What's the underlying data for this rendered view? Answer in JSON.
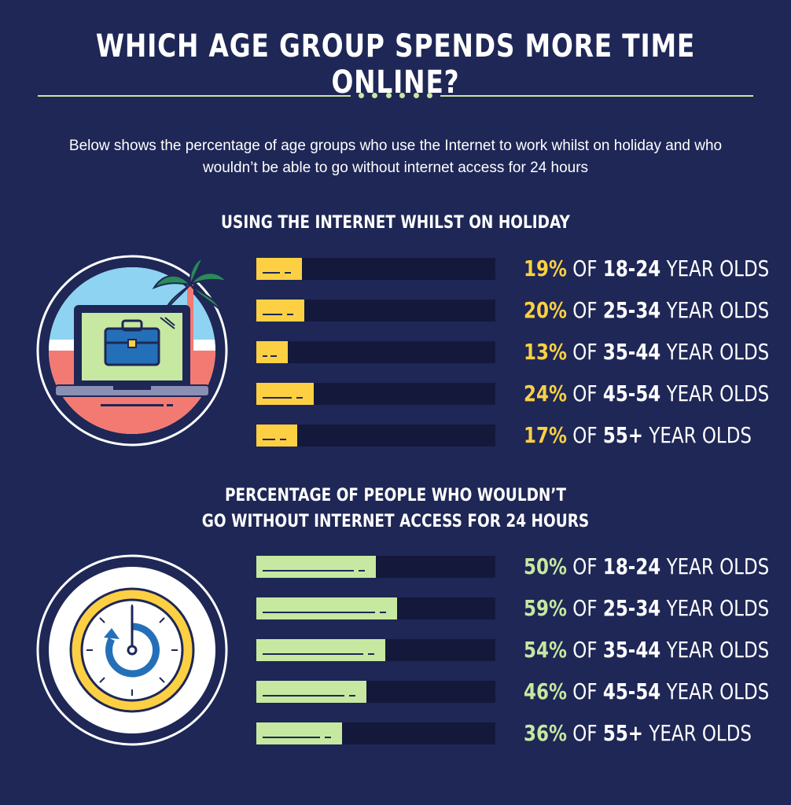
{
  "title": "WHICH AGE GROUP SPENDS MORE TIME ONLINE?",
  "intro": "Below shows the percentage of age groups who use the Internet to work whilst on holiday and who wouldn’t be able to go without internet access for 24 hours",
  "colors": {
    "background": "#1e2756",
    "track": "#14183b",
    "holiday_bar": "#fdd043",
    "offline_bar": "#c7e8a0",
    "divider": "#c7e8a0"
  },
  "chart_data": [
    {
      "type": "bar",
      "orientation": "horizontal",
      "title": "USING THE INTERNET WHILST ON HOLIDAY",
      "categories": [
        "18-24",
        "25-34",
        "35-44",
        "45-54",
        "55+"
      ],
      "values": [
        19,
        20,
        13,
        24,
        17
      ],
      "unit": "%",
      "xlim": [
        0,
        100
      ],
      "bar_color": "#fdd043",
      "icon": "laptop-palm-tree-icon",
      "labels": [
        {
          "pct": "19%",
          "of": "OF",
          "age": "18-24",
          "suffix": "YEAR OLDS"
        },
        {
          "pct": "20%",
          "of": "OF",
          "age": "25-34",
          "suffix": "YEAR OLDS"
        },
        {
          "pct": "13%",
          "of": "OF",
          "age": "35-44",
          "suffix": "YEAR OLDS"
        },
        {
          "pct": "24%",
          "of": "OF",
          "age": "45-54",
          "suffix": "YEAR OLDS"
        },
        {
          "pct": "17%",
          "of": "OF",
          "age": "55+",
          "suffix": "YEAR OLDS"
        }
      ]
    },
    {
      "type": "bar",
      "orientation": "horizontal",
      "title_lines": [
        "PERCENTAGE OF PEOPLE WHO WOULDN’T",
        "GO WITHOUT INTERNET ACCESS FOR 24 HOURS"
      ],
      "categories": [
        "18-24",
        "25-34",
        "35-44",
        "45-54",
        "55+"
      ],
      "values": [
        50,
        59,
        54,
        46,
        36
      ],
      "unit": "%",
      "xlim": [
        0,
        100
      ],
      "bar_color": "#c7e8a0",
      "icon": "clock-icon",
      "labels": [
        {
          "pct": "50%",
          "of": "OF",
          "age": "18-24",
          "suffix": "YEAR OLDS"
        },
        {
          "pct": "59%",
          "of": "OF",
          "age": "25-34",
          "suffix": "YEAR OLDS"
        },
        {
          "pct": "54%",
          "of": "OF",
          "age": "35-44",
          "suffix": "YEAR OLDS"
        },
        {
          "pct": "46%",
          "of": "OF",
          "age": "45-54",
          "suffix": "YEAR OLDS"
        },
        {
          "pct": "36%",
          "of": "OF",
          "age": "55+",
          "suffix": "YEAR OLDS"
        }
      ]
    }
  ]
}
